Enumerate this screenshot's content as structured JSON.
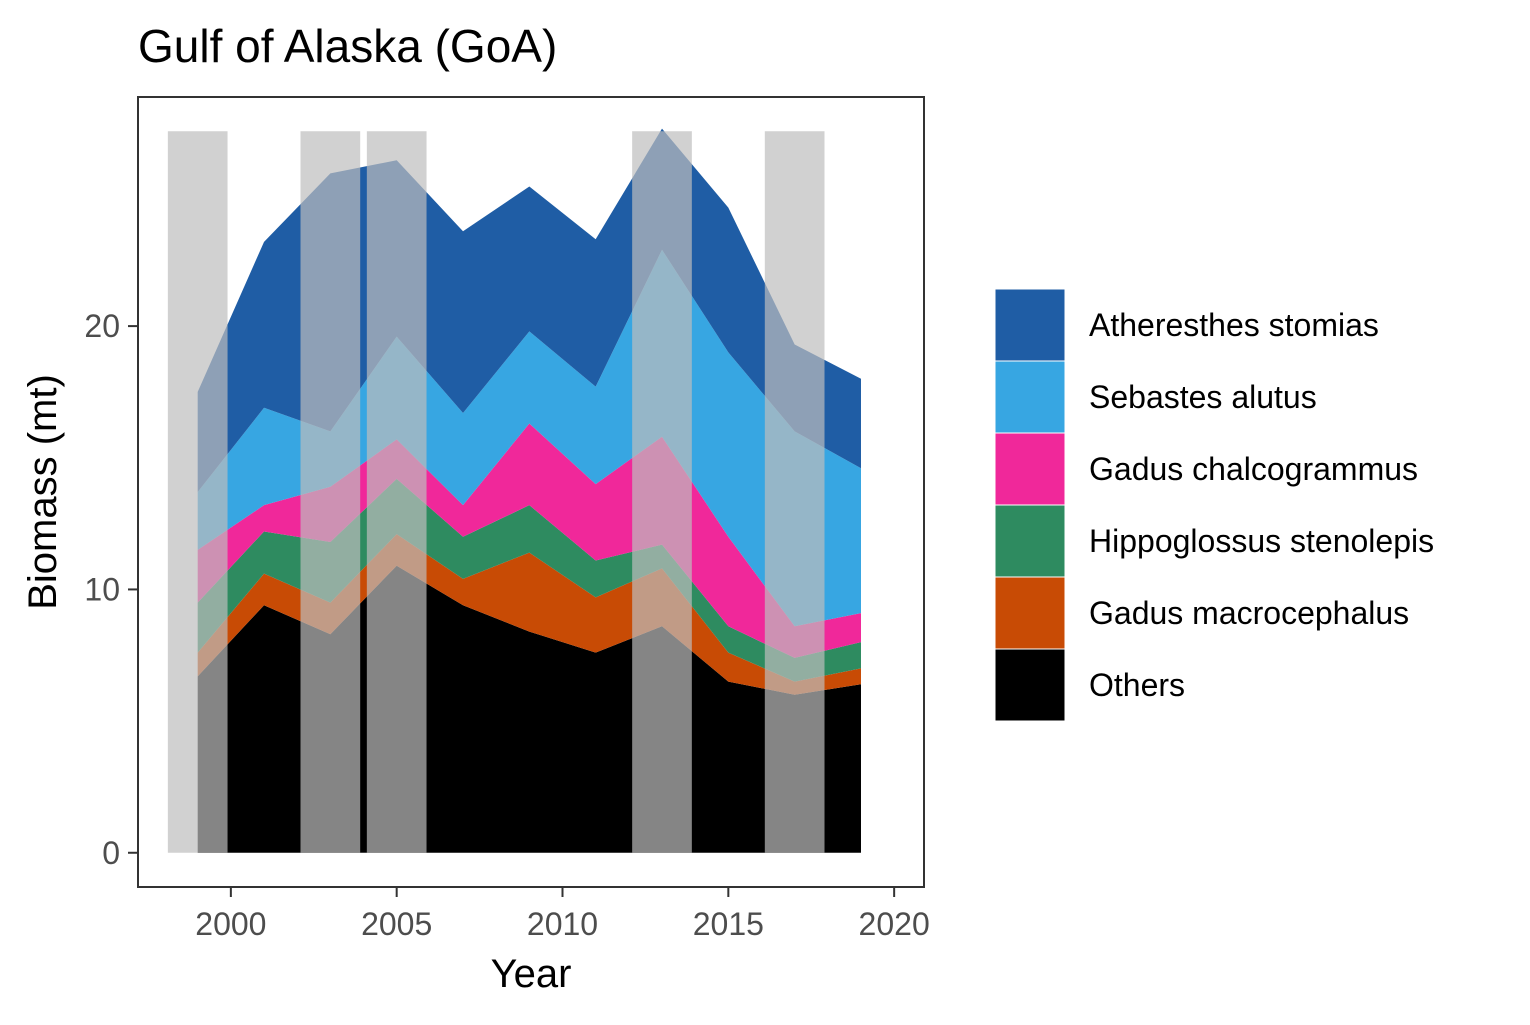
{
  "chart_data": {
    "type": "area",
    "stacked": true,
    "title": "Gulf of Alaska (GoA)",
    "xlabel": "Year",
    "ylabel": "Biomass (mt)",
    "xlim": [
      1997.2,
      2020.9
    ],
    "ylim": [
      -1.3,
      28.7
    ],
    "x_ticks": [
      2000,
      2005,
      2010,
      2015,
      2020
    ],
    "y_ticks": [
      0,
      10,
      20
    ],
    "grid": false,
    "legend_position": "right",
    "x": [
      1999,
      2001,
      2003,
      2005,
      2007,
      2009,
      2011,
      2013,
      2015,
      2017,
      2019
    ],
    "series": [
      {
        "name": "Others",
        "color": "#000000",
        "values": [
          6.7,
          9.4,
          8.3,
          10.9,
          9.4,
          8.4,
          7.6,
          8.6,
          6.5,
          6.0,
          6.4
        ]
      },
      {
        "name": "Gadus macrocephalus",
        "color": "#C84B05",
        "values": [
          0.9,
          1.2,
          1.2,
          1.2,
          1.0,
          3.0,
          2.1,
          2.2,
          1.1,
          0.5,
          0.6
        ]
      },
      {
        "name": "Hippoglossus stenolepis",
        "color": "#2E8B60",
        "values": [
          1.9,
          1.6,
          2.3,
          2.1,
          1.6,
          1.8,
          1.4,
          0.9,
          1.0,
          0.9,
          1.0
        ]
      },
      {
        "name": "Gadus chalcogrammus",
        "color": "#F0289A",
        "values": [
          2.0,
          1.0,
          2.1,
          1.5,
          1.2,
          3.1,
          2.9,
          4.1,
          3.4,
          1.2,
          1.1
        ]
      },
      {
        "name": "Sebastes alutus",
        "color": "#37A6E2",
        "values": [
          2.2,
          3.7,
          2.1,
          3.9,
          3.5,
          3.5,
          3.7,
          7.1,
          7.0,
          7.4,
          5.5
        ]
      },
      {
        "name": "Atheresthes stomias",
        "color": "#1F5DA5",
        "values": [
          3.8,
          6.3,
          9.8,
          6.7,
          6.9,
          5.5,
          5.6,
          4.6,
          5.5,
          3.3,
          3.4
        ]
      }
    ],
    "highlight_bands": [
      {
        "start": 1998.1,
        "end": 1999.9
      },
      {
        "start": 2002.1,
        "end": 2003.9
      },
      {
        "start": 2004.1,
        "end": 2005.9
      },
      {
        "start": 2012.1,
        "end": 2013.9
      },
      {
        "start": 2016.1,
        "end": 2017.9
      }
    ],
    "band_top_value": 27.4,
    "band_color": "#BEBEBE",
    "band_opacity": 0.7,
    "legend_order": [
      "Atheresthes stomias",
      "Sebastes alutus",
      "Gadus chalcogrammus",
      "Hippoglossus stenolepis",
      "Gadus macrocephalus",
      "Others"
    ]
  }
}
